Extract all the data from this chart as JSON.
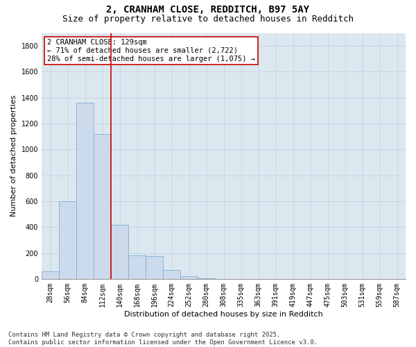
{
  "title_line1": "2, CRANHAM CLOSE, REDDITCH, B97 5AY",
  "title_line2": "Size of property relative to detached houses in Redditch",
  "xlabel": "Distribution of detached houses by size in Redditch",
  "ylabel": "Number of detached properties",
  "bar_labels": [
    "28sqm",
    "56sqm",
    "84sqm",
    "112sqm",
    "140sqm",
    "168sqm",
    "196sqm",
    "224sqm",
    "252sqm",
    "280sqm",
    "308sqm",
    "335sqm",
    "363sqm",
    "391sqm",
    "419sqm",
    "447sqm",
    "475sqm",
    "503sqm",
    "531sqm",
    "559sqm",
    "587sqm"
  ],
  "bar_values": [
    60,
    600,
    1360,
    1120,
    420,
    180,
    175,
    70,
    20,
    5,
    0,
    0,
    0,
    0,
    0,
    0,
    0,
    0,
    0,
    0,
    0
  ],
  "bar_color": "#cddaeb",
  "bar_edge_color": "#7bafd4",
  "vline_x_idx": 3.5,
  "vline_color": "#cc0000",
  "annotation_text": "2 CRANHAM CLOSE: 129sqm\n← 71% of detached houses are smaller (2,722)\n28% of semi-detached houses are larger (1,075) →",
  "annotation_box_color": "#cc0000",
  "annotation_box_facecolor": "white",
  "ylim": [
    0,
    1900
  ],
  "yticks": [
    0,
    200,
    400,
    600,
    800,
    1000,
    1200,
    1400,
    1600,
    1800
  ],
  "grid_color": "#c8d4e0",
  "bg_color": "#dce8f0",
  "footer_text": "Contains HM Land Registry data © Crown copyright and database right 2025.\nContains public sector information licensed under the Open Government Licence v3.0.",
  "title_fontsize": 10,
  "subtitle_fontsize": 9,
  "axis_label_fontsize": 8,
  "tick_fontsize": 7,
  "annotation_fontsize": 7.5,
  "footer_fontsize": 6.5
}
